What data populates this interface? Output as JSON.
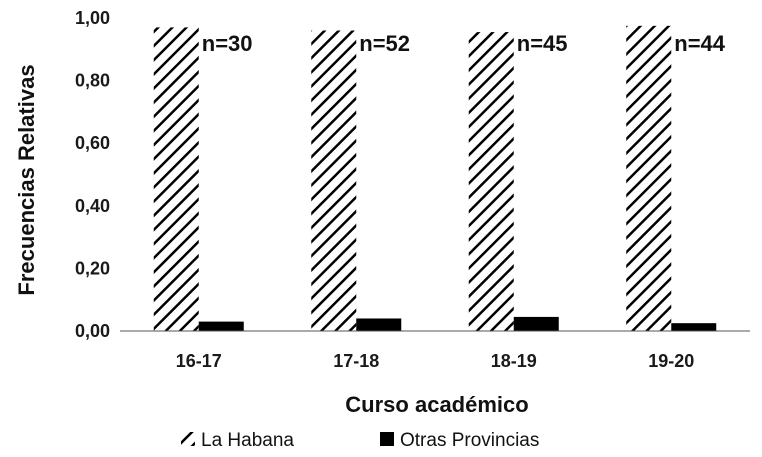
{
  "chart_data": {
    "type": "bar",
    "title": "",
    "xlabel": "Curso académico",
    "ylabel": "Frecuencias Relativas",
    "categories": [
      "16-17",
      "17-18",
      "18-19",
      "19-20"
    ],
    "ylim": [
      0,
      1.0
    ],
    "yticks": [
      "0,00",
      "0,20",
      "0,40",
      "0,60",
      "0,80",
      "1,00"
    ],
    "series": [
      {
        "name": "La Habana",
        "values": [
          0.97,
          0.96,
          0.955,
          0.975
        ],
        "fill": "hatched"
      },
      {
        "name": "Otras Provincias",
        "values": [
          0.03,
          0.04,
          0.045,
          0.025
        ],
        "fill": "#000000"
      }
    ],
    "annotations": [
      "n=30",
      "n=52",
      "n=45",
      "n=44"
    ],
    "legend_position": "bottom",
    "grid": false
  }
}
